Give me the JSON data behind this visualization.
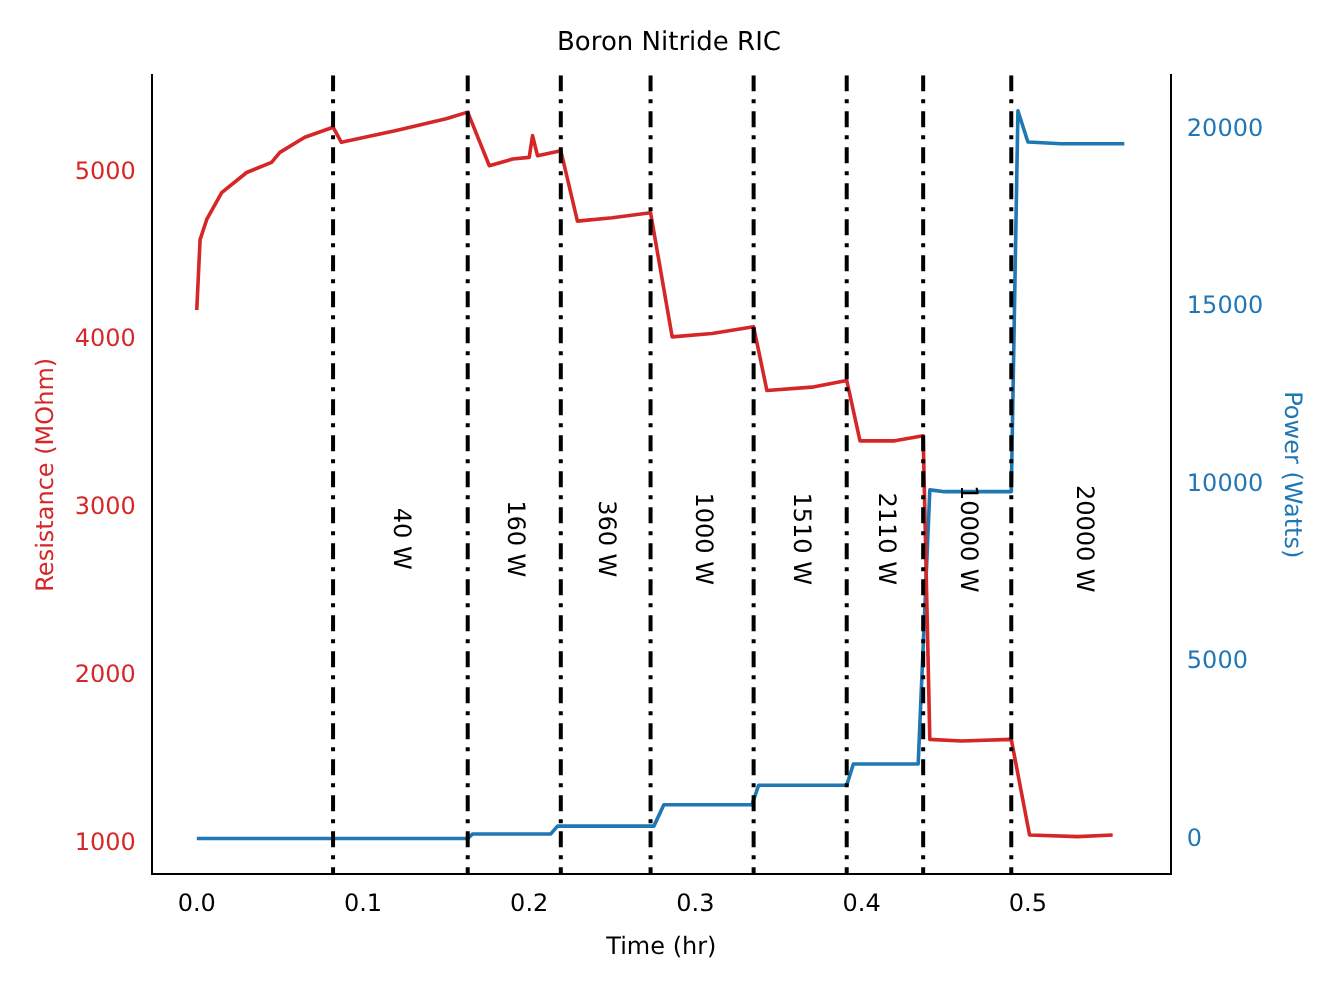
{
  "chart_data": {
    "type": "line",
    "title": "Boron Nitride RIC",
    "xlabel": "Time (hr)",
    "ylabel": "Resistance (MOhm)",
    "y2label": "Power (Watts)",
    "xlim": [
      -0.027,
      0.586
    ],
    "xticks": [
      {
        "value": 0,
        "label": "0.0"
      },
      0.1,
      0.2,
      0.3,
      0.4,
      0.5
    ],
    "ylim": [
      815,
      5580
    ],
    "yticks": [
      1000,
      2000,
      3000,
      4000,
      5000
    ],
    "y2lim": [
      -980,
      21530
    ],
    "y2ticks": [
      0,
      5000,
      10000,
      15000,
      20000
    ],
    "grid": false,
    "legend": false,
    "marker": "none",
    "line_style": "solid",
    "series": [
      {
        "color": "#d62728",
        "axis": "y",
        "x": [
          0,
          0.002,
          0.006,
          0.015,
          0.03,
          0.045,
          0.05,
          0.065,
          0.082,
          0.087,
          0.12,
          0.15,
          0.163,
          0.176,
          0.19,
          0.2,
          0.202,
          0.205,
          0.219,
          0.229,
          0.25,
          0.273,
          0.286,
          0.31,
          0.335,
          0.343,
          0.37,
          0.391,
          0.399,
          0.42,
          0.437,
          0.441,
          0.46,
          0.49,
          0.501,
          0.53,
          0.551
        ],
        "values": [
          4180,
          4600,
          4720,
          4880,
          5000,
          5060,
          5120,
          5210,
          5270,
          5180,
          5250,
          5320,
          5360,
          5040,
          5080,
          5090,
          5220,
          5100,
          5130,
          4710,
          4730,
          4760,
          4020,
          4040,
          4080,
          3700,
          3720,
          3760,
          3400,
          3400,
          3430,
          1620,
          1610,
          1620,
          1050,
          1040,
          1050
        ]
      },
      {
        "color": "#1f77b4",
        "axis": "y2",
        "x": [
          0,
          0.163,
          0.166,
          0.213,
          0.217,
          0.275,
          0.281,
          0.334,
          0.338,
          0.391,
          0.395,
          0.434,
          0.441,
          0.45,
          0.49,
          0.494,
          0.5,
          0.52,
          0.558
        ],
        "values": [
          30,
          30,
          160,
          160,
          380,
          380,
          980,
          980,
          1530,
          1530,
          2130,
          2130,
          9850,
          9800,
          9800,
          20530,
          19650,
          19600,
          19600
        ]
      }
    ],
    "ref_lines": [
      {
        "axis": "x",
        "value": 0.082,
        "color": "#000000",
        "line_style": "dashdot"
      },
      {
        "axis": "x",
        "value": 0.163,
        "color": "#000000",
        "line_style": "dashdot"
      },
      {
        "axis": "x",
        "value": 0.219,
        "color": "#000000",
        "line_style": "dashdot"
      },
      {
        "axis": "x",
        "value": 0.273,
        "color": "#000000",
        "line_style": "dashdot"
      },
      {
        "axis": "x",
        "value": 0.335,
        "color": "#000000",
        "line_style": "dashdot"
      },
      {
        "axis": "x",
        "value": 0.391,
        "color": "#000000",
        "line_style": "dashdot"
      },
      {
        "axis": "x",
        "value": 0.437,
        "color": "#000000",
        "line_style": "dashdot"
      },
      {
        "axis": "x",
        "value": 0.49,
        "color": "#000000",
        "line_style": "dashdot"
      }
    ],
    "annotations": [
      "40 W",
      "160 W",
      "360 W",
      "1000 W",
      "1510 W",
      "2110 W",
      "10000 W",
      "20000 W"
    ]
  }
}
